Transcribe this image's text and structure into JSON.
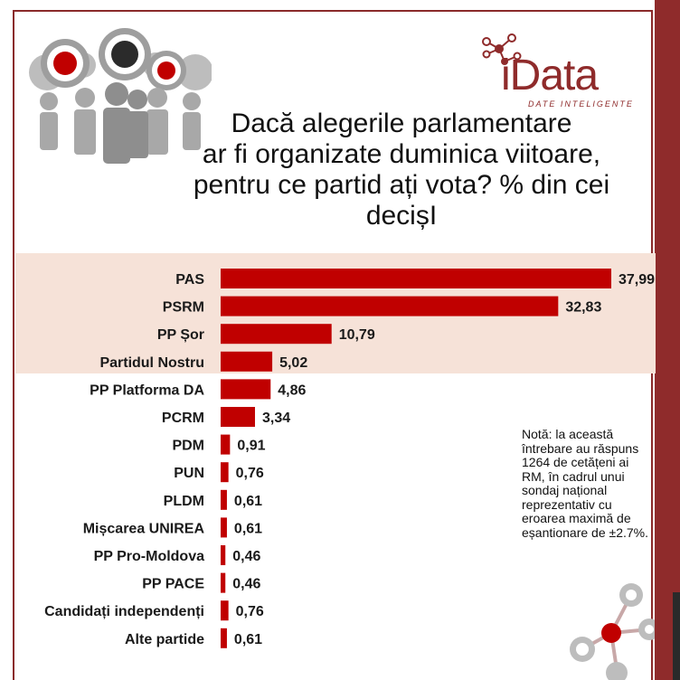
{
  "logo": {
    "text_i": "i",
    "text_rest": "Data",
    "subtitle": "DATE INTELIGENTE"
  },
  "note": "Notă: la această întrebare au răspuns 1264 de cetățeni ai RM, în cadrul unui sondaj național reprezentativ cu eroarea maximă de eșantionare de ±2.7%.",
  "colors": {
    "bar": "#c00000",
    "accent": "#8f2b2b",
    "band": "#f6e2d8"
  },
  "chart_data": {
    "type": "bar",
    "orientation": "horizontal",
    "title": "Dacă alegerile parlamentare ar fi organizate duminica viitoare, pentru ce partid ați vota? % din cei decișI",
    "title_lines": [
      "Dacă alegerile parlamentare",
      "ar fi organizate duminica viitoare,",
      "pentru ce partid ați vota? % din cei",
      "decișI"
    ],
    "categories": [
      "PAS",
      "PSRM",
      "PP Șor",
      "Partidul Nostru",
      "PP Platforma DA",
      "PCRM",
      "PDM",
      "PUN",
      "PLDM",
      "Mișcarea UNIREA",
      "PP Pro-Moldova",
      "PP PACE",
      "Candidați independenți",
      "Alte partide"
    ],
    "values": [
      37.99,
      32.83,
      10.79,
      5.02,
      4.86,
      3.34,
      0.91,
      0.76,
      0.61,
      0.61,
      0.46,
      0.46,
      0.76,
      0.61
    ],
    "value_labels": [
      "37,99",
      "32,83",
      "10,79",
      "5,02",
      "4,86",
      "3,34",
      "0,91",
      "0,76",
      "0,61",
      "0,61",
      "0,46",
      "0,46",
      "0,76",
      "0,61"
    ],
    "highlighted_categories": 4,
    "xlim": [
      0,
      37.99
    ],
    "grid": false,
    "legend": "none"
  }
}
